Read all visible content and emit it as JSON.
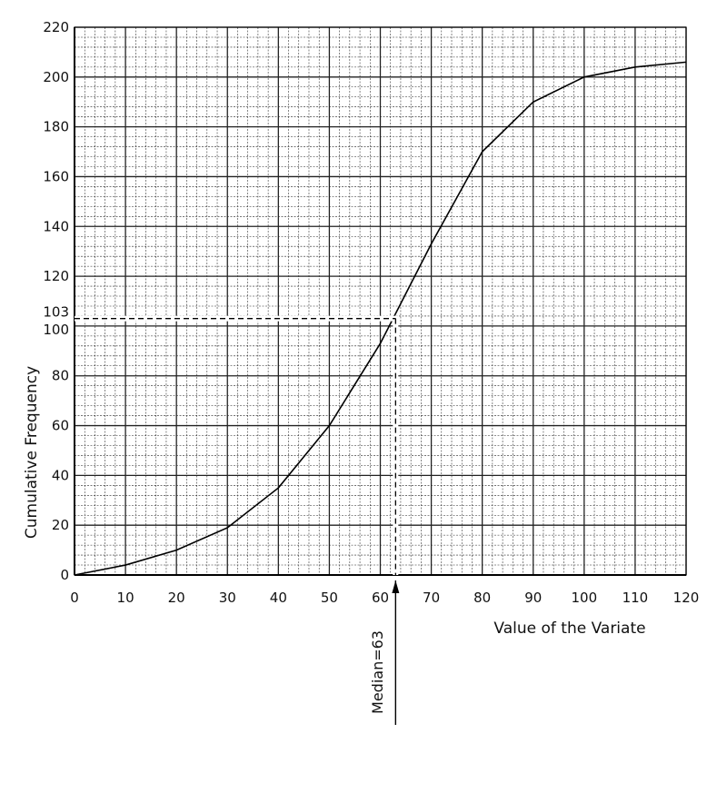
{
  "chart_data": {
    "type": "line",
    "xlabel": "Value of the Variate",
    "ylabel": "Cumulative Frequency",
    "xlim": [
      0,
      120
    ],
    "ylim": [
      0,
      220
    ],
    "x_ticks": [
      0,
      10,
      20,
      30,
      40,
      50,
      60,
      70,
      80,
      90,
      100,
      110,
      120
    ],
    "y_ticks": [
      0,
      20,
      40,
      60,
      80,
      100,
      103,
      120,
      140,
      160,
      180,
      200,
      220
    ],
    "grid": true,
    "series": [
      {
        "x": [
          0,
          10,
          20,
          30,
          40,
          50,
          60,
          70,
          80,
          90,
          100,
          110,
          120
        ],
        "y": [
          0,
          4,
          10,
          19,
          35,
          60,
          93,
          133,
          170,
          190,
          200,
          204,
          206
        ]
      }
    ],
    "annotation": {
      "label": "Median=63",
      "x": 63,
      "y": 103
    }
  }
}
